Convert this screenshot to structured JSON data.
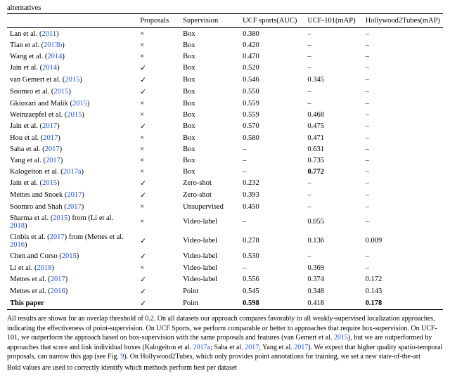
{
  "headerFragment": "alternatives",
  "columns": {
    "author": "",
    "proposals": "Proposals",
    "supervision": "Supervision",
    "ucfsports": "UCF sports(AUC)",
    "ucf101": "UCF-101(mAP)",
    "hollywood": "Hollywood2Tubes(mAP)"
  },
  "rows": [
    {
      "pre": "Lan et al. (",
      "link": "2011",
      "post": ")",
      "prop": "x",
      "sup": "Box",
      "ucfs": "0.380",
      "ucf101": "–",
      "hw": "–"
    },
    {
      "pre": "Tian et al. (",
      "link": "2013b",
      "post": ")",
      "prop": "x",
      "sup": "Box",
      "ucfs": "0.420",
      "ucf101": "–",
      "hw": "–"
    },
    {
      "pre": "Wang et al. (",
      "link": "2014",
      "post": ")",
      "prop": "x",
      "sup": "Box",
      "ucfs": "0.470",
      "ucf101": "–",
      "hw": "–"
    },
    {
      "pre": "Jain et al. (",
      "link": "2014",
      "post": ")",
      "prop": "v",
      "sup": "Box",
      "ucfs": "0.520",
      "ucf101": "–",
      "hw": "–"
    },
    {
      "pre": "van Gemert et al. (",
      "link": "2015",
      "post": ")",
      "prop": "v",
      "sup": "Box",
      "ucfs": "0.546",
      "ucf101": "0.345",
      "hw": "–"
    },
    {
      "pre": "Soomro et al. (",
      "link": "2015",
      "post": ")",
      "prop": "v",
      "sup": "Box",
      "ucfs": "0.550",
      "ucf101": "–",
      "hw": "–"
    },
    {
      "pre": "Gkioxari and Malik (",
      "link": "2015",
      "post": ")",
      "prop": "x",
      "sup": "Box",
      "ucfs": "0.559",
      "ucf101": "–",
      "hw": "–"
    },
    {
      "pre": "Weinzaepfel et al. (",
      "link": "2015",
      "post": ")",
      "prop": "x",
      "sup": "Box",
      "ucfs": "0.559",
      "ucf101": "0.468",
      "hw": "–"
    },
    {
      "pre": "Jain et al. (",
      "link": "2017",
      "post": ")",
      "prop": "v",
      "sup": "Box",
      "ucfs": "0.570",
      "ucf101": "0.475",
      "hw": "–"
    },
    {
      "pre": "Hou et al. (",
      "link": "2017",
      "post": ")",
      "prop": "x",
      "sup": "Box",
      "ucfs": "0.580",
      "ucf101": "0.471",
      "hw": "–"
    },
    {
      "pre": "Saha et al. (",
      "link": "2017",
      "post": ")",
      "prop": "x",
      "sup": "Box",
      "ucfs": "–",
      "ucf101": "0.631",
      "hw": "–"
    },
    {
      "pre": "Yang et al. (",
      "link": "2017",
      "post": ")",
      "prop": "x",
      "sup": "Box",
      "ucfs": "–",
      "ucf101": "0.735",
      "hw": "–"
    },
    {
      "pre": "Kalogeiton et al. (",
      "link": "2017a",
      "post": ")",
      "prop": "x",
      "sup": "Box",
      "ucfs": "–",
      "ucf101": "0.772",
      "ucf101bold": true,
      "hw": "–"
    },
    {
      "pre": "Jain et al. (",
      "link": "2015",
      "post": ")",
      "prop": "v",
      "sup": "Zero-shot",
      "ucfs": "0.232",
      "ucf101": "–",
      "hw": "–"
    },
    {
      "pre": "Mettes and Snoek (",
      "link": "2017",
      "post": ")",
      "prop": "v",
      "sup": "Zero-shot",
      "ucfs": "0.393",
      "ucf101": "–",
      "hw": "–"
    },
    {
      "pre": "Soomro and Shah (",
      "link": "2017",
      "post": ")",
      "prop": "x",
      "sup": "Unsupervised",
      "ucfs": "0.450",
      "ucf101": "–",
      "hw": "–"
    },
    {
      "pre": "Sharma et al. (",
      "link": "2015",
      "post": ") from (Li et al. ",
      "link2": "2018",
      "post2": ")",
      "prop": "x",
      "sup": "Video-label",
      "ucfs": "–",
      "ucf101": "0.055",
      "hw": "–"
    },
    {
      "pre": "Cinbis et al. (",
      "link": "2017",
      "post": ") from (Mettes et al. ",
      "link2": "2016",
      "post2": ")",
      "prop": "v",
      "sup": "Video-label",
      "ucfs": "0.278",
      "ucf101": "0.136",
      "hw": "0.009"
    },
    {
      "pre": "Chen and Corso (",
      "link": "2015",
      "post": ")",
      "prop": "v",
      "sup": "Video-label",
      "ucfs": "0.530",
      "ucf101": "–",
      "hw": "–"
    },
    {
      "pre": "Li et al. (",
      "link": "2018",
      "post": ")",
      "prop": "x",
      "sup": "Video-label",
      "ucfs": "–",
      "ucf101": "0.369",
      "hw": "–"
    },
    {
      "pre": "Mettes et al. (",
      "link": "2017",
      "post": ")",
      "prop": "v",
      "sup": "Video-label",
      "ucfs": "0.556",
      "ucf101": "0.374",
      "hw": "0.172"
    },
    {
      "pre": "Mettes et al. (",
      "link": "2016",
      "post": ")",
      "prop": "v",
      "sup": "Point",
      "ucfs": "0.545",
      "ucf101": "0.348",
      "hw": "0.143"
    },
    {
      "thispaper": true,
      "pre": "This paper",
      "link": "",
      "post": "",
      "prop": "v",
      "sup": "Point",
      "ucfs": "0.598",
      "ucfsbold": true,
      "ucf101": "0.418",
      "hw": "0.178",
      "hwbold": true
    }
  ],
  "caption": {
    "text_pre": "All results are shown for an overlap threshold of 0.2. On all datasets our approach compares favorably to all weakly-supervised localization approaches, indicating the effectiveness of point-supervision. On UCF Sports, we perform comparable or better to approaches that require box-supervision. On UCF-101, we outperform the approach based on box-supervision with the same proposals and features (van Gemert et al. ",
    "l1": "2015",
    "mid1": "), but we are outperformed by approaches that score and link individual boxes (Kalogeiton et al. ",
    "l2": "2017a",
    "mid2": "; Saha et al. ",
    "l3": "2017",
    "mid3": "; Yang et al. ",
    "l4": "2017",
    "mid4": "). We expect that higher quality spatio-temporal proposals, can narrow this gap (see Fig. ",
    "l5": "9",
    "mid5": "). On Hollywood2Tubes, which only provides point annotations for training, we set a new state-of-the-art"
  },
  "note": "Bold values are used to correctly identify which methods perform best per dataset"
}
